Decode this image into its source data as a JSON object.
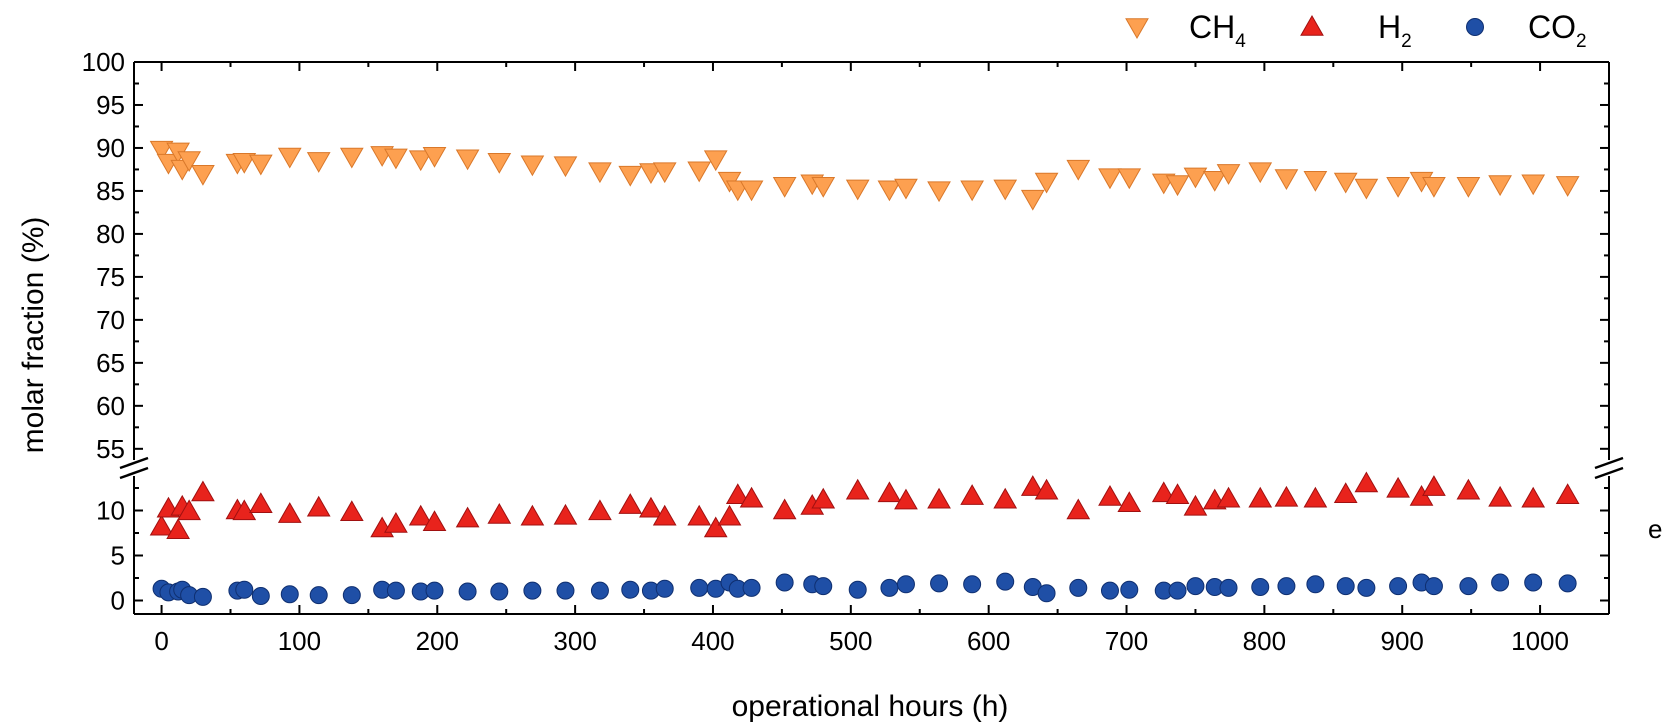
{
  "chart_data": {
    "type": "scatter",
    "xlabel": "operational hours (h)",
    "ylabel": "molar fraction (%)",
    "xlim": [
      -20,
      1050
    ],
    "xticks": [
      0,
      100,
      200,
      300,
      400,
      500,
      600,
      700,
      800,
      900,
      1000
    ],
    "y_upper_lim": [
      53,
      100
    ],
    "y_upper_ticks": [
      55,
      60,
      65,
      70,
      75,
      80,
      85,
      90,
      95,
      100
    ],
    "y_lower_lim": [
      -1.5,
      14.5
    ],
    "y_lower_ticks": [
      0,
      5,
      10
    ],
    "axis_break": "between 14.5 and 53",
    "grid": false,
    "legend_position": "top-right, above plot",
    "series": [
      {
        "name": "CH4",
        "label_main": "CH",
        "label_sub": "4",
        "marker": "triangle-down",
        "color": "#FDA050",
        "edge": "#D9782A",
        "axis": "upper",
        "points": [
          [
            0,
            89.8
          ],
          [
            5,
            88.3
          ],
          [
            12,
            89.6
          ],
          [
            15,
            87.6
          ],
          [
            20,
            88.6
          ],
          [
            30,
            87.0
          ],
          [
            55,
            88.3
          ],
          [
            60,
            88.4
          ],
          [
            72,
            88.2
          ],
          [
            93,
            89.0
          ],
          [
            114,
            88.5
          ],
          [
            138,
            89.0
          ],
          [
            160,
            89.2
          ],
          [
            170,
            88.9
          ],
          [
            188,
            88.7
          ],
          [
            198,
            89.1
          ],
          [
            222,
            88.8
          ],
          [
            245,
            88.4
          ],
          [
            269,
            88.1
          ],
          [
            293,
            88.0
          ],
          [
            318,
            87.3
          ],
          [
            340,
            86.9
          ],
          [
            355,
            87.2
          ],
          [
            365,
            87.3
          ],
          [
            390,
            87.4
          ],
          [
            402,
            88.7
          ],
          [
            412,
            86.2
          ],
          [
            418,
            85.2
          ],
          [
            428,
            85.2
          ],
          [
            452,
            85.6
          ],
          [
            472,
            85.9
          ],
          [
            480,
            85.6
          ],
          [
            505,
            85.3
          ],
          [
            528,
            85.2
          ],
          [
            540,
            85.4
          ],
          [
            564,
            85.1
          ],
          [
            588,
            85.2
          ],
          [
            612,
            85.3
          ],
          [
            632,
            84.1
          ],
          [
            642,
            86.1
          ],
          [
            665,
            87.6
          ],
          [
            688,
            86.6
          ],
          [
            702,
            86.6
          ],
          [
            727,
            86.0
          ],
          [
            737,
            85.8
          ],
          [
            750,
            86.7
          ],
          [
            764,
            86.3
          ],
          [
            774,
            87.1
          ],
          [
            797,
            87.3
          ],
          [
            816,
            86.5
          ],
          [
            837,
            86.3
          ],
          [
            859,
            86.1
          ],
          [
            874,
            85.4
          ],
          [
            897,
            85.6
          ],
          [
            914,
            86.2
          ],
          [
            923,
            85.6
          ],
          [
            948,
            85.6
          ],
          [
            971,
            85.8
          ],
          [
            995,
            85.9
          ],
          [
            1020,
            85.7
          ]
        ]
      },
      {
        "name": "H2",
        "label_main": "H",
        "label_sub": "2",
        "marker": "triangle-up",
        "color": "#E8231C",
        "edge": "#A01010",
        "axis": "lower",
        "points": [
          [
            0,
            8.2
          ],
          [
            5,
            10.2
          ],
          [
            12,
            7.8
          ],
          [
            15,
            10.4
          ],
          [
            20,
            9.9
          ],
          [
            30,
            12.0
          ],
          [
            55,
            10.0
          ],
          [
            60,
            9.9
          ],
          [
            72,
            10.7
          ],
          [
            93,
            9.6
          ],
          [
            114,
            10.3
          ],
          [
            138,
            9.8
          ],
          [
            160,
            8.0
          ],
          [
            170,
            8.5
          ],
          [
            188,
            9.3
          ],
          [
            198,
            8.7
          ],
          [
            222,
            9.1
          ],
          [
            245,
            9.5
          ],
          [
            269,
            9.3
          ],
          [
            293,
            9.4
          ],
          [
            318,
            9.9
          ],
          [
            340,
            10.6
          ],
          [
            355,
            10.2
          ],
          [
            365,
            9.3
          ],
          [
            390,
            9.3
          ],
          [
            402,
            8.0
          ],
          [
            412,
            9.3
          ],
          [
            418,
            11.7
          ],
          [
            428,
            11.3
          ],
          [
            452,
            10.0
          ],
          [
            472,
            10.5
          ],
          [
            480,
            11.2
          ],
          [
            505,
            12.2
          ],
          [
            528,
            11.9
          ],
          [
            540,
            11.1
          ],
          [
            564,
            11.2
          ],
          [
            588,
            11.6
          ],
          [
            612,
            11.2
          ],
          [
            632,
            12.6
          ],
          [
            642,
            12.2
          ],
          [
            665,
            10.0
          ],
          [
            688,
            11.5
          ],
          [
            702,
            10.8
          ],
          [
            727,
            11.9
          ],
          [
            737,
            11.7
          ],
          [
            750,
            10.4
          ],
          [
            764,
            11.1
          ],
          [
            774,
            11.3
          ],
          [
            797,
            11.3
          ],
          [
            816,
            11.4
          ],
          [
            837,
            11.3
          ],
          [
            859,
            11.8
          ],
          [
            874,
            13.0
          ],
          [
            897,
            12.4
          ],
          [
            914,
            11.5
          ],
          [
            923,
            12.6
          ],
          [
            948,
            12.2
          ],
          [
            971,
            11.4
          ],
          [
            995,
            11.3
          ],
          [
            1020,
            11.7
          ]
        ]
      },
      {
        "name": "CO2",
        "label_main": "CO",
        "label_sub": "2",
        "marker": "circle",
        "color": "#1F4FA6",
        "edge": "#0F2F70",
        "axis": "lower",
        "points": [
          [
            0,
            1.3
          ],
          [
            5,
            0.9
          ],
          [
            12,
            1.0
          ],
          [
            15,
            1.2
          ],
          [
            20,
            0.6
          ],
          [
            30,
            0.4
          ],
          [
            55,
            1.1
          ],
          [
            60,
            1.2
          ],
          [
            72,
            0.5
          ],
          [
            93,
            0.7
          ],
          [
            114,
            0.6
          ],
          [
            138,
            0.6
          ],
          [
            160,
            1.2
          ],
          [
            170,
            1.1
          ],
          [
            188,
            1.0
          ],
          [
            198,
            1.1
          ],
          [
            222,
            1.0
          ],
          [
            245,
            1.0
          ],
          [
            269,
            1.1
          ],
          [
            293,
            1.1
          ],
          [
            318,
            1.1
          ],
          [
            340,
            1.2
          ],
          [
            355,
            1.1
          ],
          [
            365,
            1.3
          ],
          [
            390,
            1.4
          ],
          [
            402,
            1.3
          ],
          [
            412,
            2.0
          ],
          [
            418,
            1.3
          ],
          [
            428,
            1.4
          ],
          [
            452,
            2.0
          ],
          [
            472,
            1.8
          ],
          [
            480,
            1.6
          ],
          [
            505,
            1.2
          ],
          [
            528,
            1.4
          ],
          [
            540,
            1.8
          ],
          [
            564,
            1.9
          ],
          [
            588,
            1.8
          ],
          [
            612,
            2.1
          ],
          [
            632,
            1.5
          ],
          [
            642,
            0.8
          ],
          [
            665,
            1.4
          ],
          [
            688,
            1.1
          ],
          [
            702,
            1.2
          ],
          [
            727,
            1.1
          ],
          [
            737,
            1.1
          ],
          [
            750,
            1.6
          ],
          [
            764,
            1.5
          ],
          [
            774,
            1.4
          ],
          [
            797,
            1.5
          ],
          [
            816,
            1.6
          ],
          [
            837,
            1.8
          ],
          [
            859,
            1.6
          ],
          [
            874,
            1.4
          ],
          [
            897,
            1.6
          ],
          [
            914,
            2.0
          ],
          [
            923,
            1.6
          ],
          [
            948,
            1.6
          ],
          [
            971,
            2.0
          ],
          [
            995,
            2.0
          ],
          [
            1020,
            1.9
          ]
        ]
      }
    ]
  },
  "stray_text": "e"
}
